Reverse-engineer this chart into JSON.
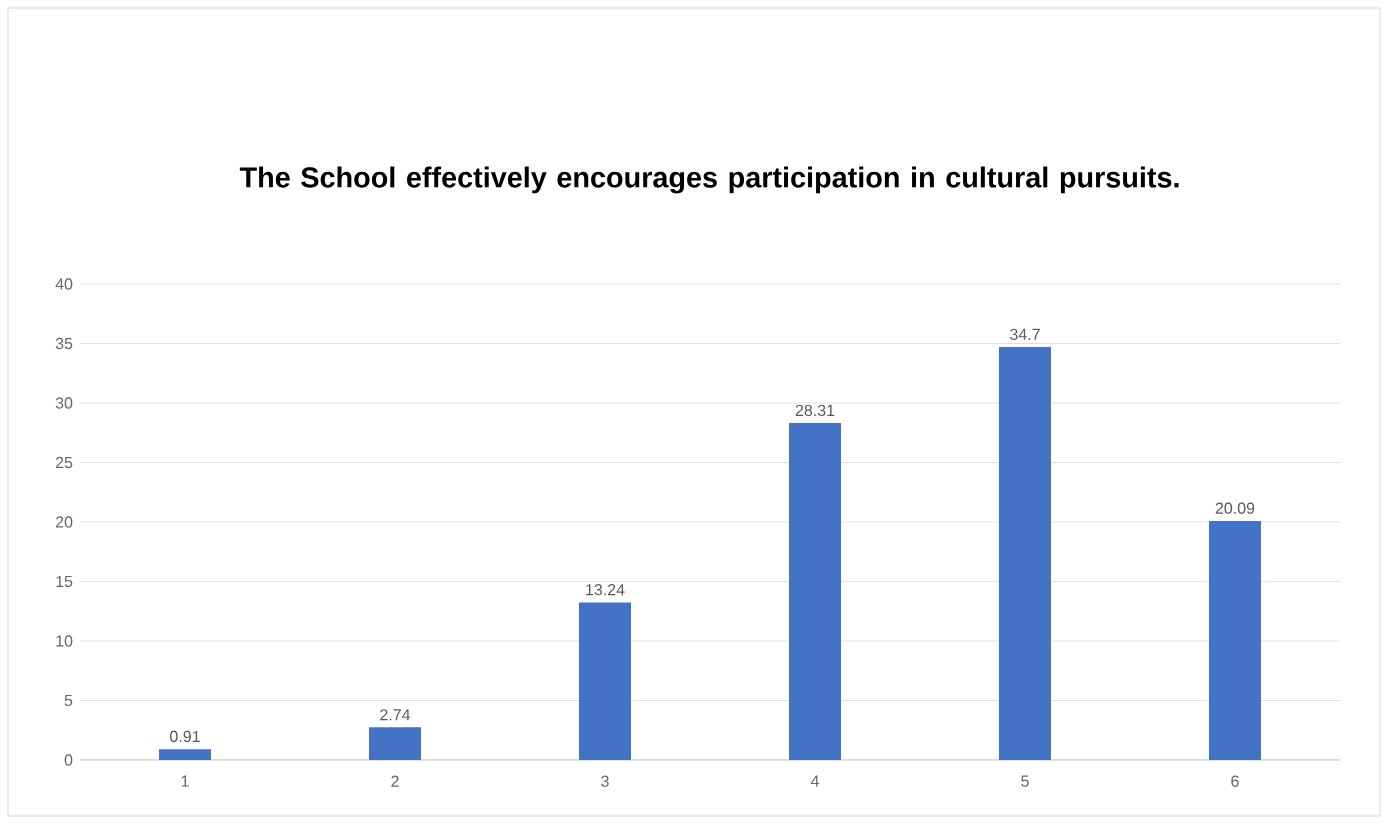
{
  "chart_data": {
    "type": "bar",
    "title": "The School effectively encourages participation in cultural pursuits.",
    "categories": [
      "1",
      "2",
      "3",
      "4",
      "5",
      "6"
    ],
    "values": [
      0.91,
      2.74,
      13.24,
      28.31,
      34.7,
      20.09
    ],
    "color": "#4472c4",
    "ylim": [
      0,
      40
    ],
    "yticks": [
      0,
      5,
      10,
      15,
      20,
      25,
      30,
      35,
      40
    ],
    "grid": "y",
    "data_labels": true
  }
}
